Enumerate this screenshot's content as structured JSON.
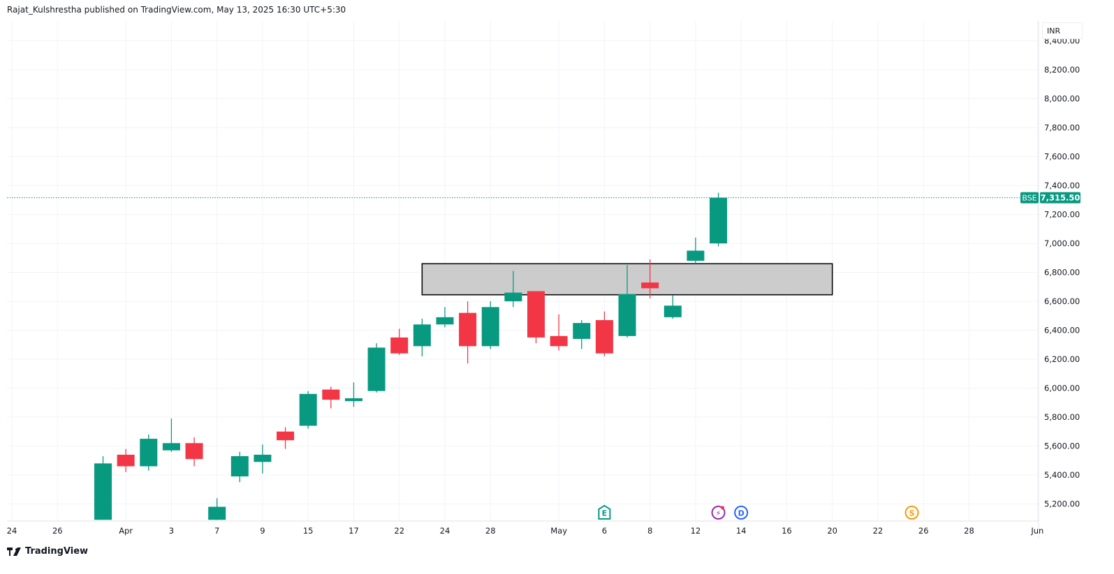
{
  "header": {
    "text": "Rajat_Kulshrestha published on TradingView.com, May 13, 2025 16:30 UTC+5:30"
  },
  "footer": {
    "brand": "TradingView",
    "logo_icon": "tradingview-logo-icon"
  },
  "price_scale": {
    "currency": "INR"
  },
  "last_price": {
    "exchange": "BSE",
    "value": "7,315.50"
  },
  "colors": {
    "up": "#089981",
    "down": "#f23645",
    "zone_fill": "#cccccc",
    "grid": "#f0f3fa"
  },
  "chart_data": {
    "type": "candlestick",
    "y_ticks": [
      "5,200.00",
      "5,400.00",
      "5,600.00",
      "5,800.00",
      "6,000.00",
      "6,200.00",
      "6,400.00",
      "6,600.00",
      "6,800.00",
      "7,000.00",
      "7,200.00",
      "7,400.00",
      "7,600.00",
      "7,800.00",
      "8,000.00",
      "8,200.00",
      "8,400.00"
    ],
    "ylim": [
      5050,
      8450
    ],
    "x_ticks": [
      {
        "label": "24",
        "date": "2025-03-24"
      },
      {
        "label": "26",
        "date": "2025-03-26"
      },
      {
        "label": "Apr",
        "date": "2025-04-01"
      },
      {
        "label": "3",
        "date": "2025-04-03"
      },
      {
        "label": "7",
        "date": "2025-04-07"
      },
      {
        "label": "9",
        "date": "2025-04-09"
      },
      {
        "label": "15",
        "date": "2025-04-15"
      },
      {
        "label": "17",
        "date": "2025-04-17"
      },
      {
        "label": "22",
        "date": "2025-04-22"
      },
      {
        "label": "24",
        "date": "2025-04-24"
      },
      {
        "label": "28",
        "date": "2025-04-28"
      },
      {
        "label": "May",
        "date": "2025-05-02"
      },
      {
        "label": "6",
        "date": "2025-05-06"
      },
      {
        "label": "8",
        "date": "2025-05-08"
      },
      {
        "label": "12",
        "date": "2025-05-12"
      },
      {
        "label": "14",
        "date": "2025-05-14"
      },
      {
        "label": "16",
        "date": "2025-05-16"
      },
      {
        "label": "20",
        "date": "2025-05-20"
      },
      {
        "label": "22",
        "date": "2025-05-22"
      },
      {
        "label": "26",
        "date": "2025-05-26"
      },
      {
        "label": "28",
        "date": "2025-05-28"
      },
      {
        "label": "Jun",
        "date": "2025-06-02"
      }
    ],
    "candles": [
      {
        "date": "2025-03-28",
        "o": 5090,
        "h": 5530,
        "l": 5090,
        "c": 5480
      },
      {
        "date": "2025-04-01",
        "o": 5540,
        "h": 5580,
        "l": 5420,
        "c": 5460
      },
      {
        "date": "2025-04-02",
        "o": 5460,
        "h": 5680,
        "l": 5430,
        "c": 5650
      },
      {
        "date": "2025-04-03",
        "o": 5570,
        "h": 5790,
        "l": 5560,
        "c": 5620
      },
      {
        "date": "2025-04-04",
        "o": 5620,
        "h": 5660,
        "l": 5460,
        "c": 5510
      },
      {
        "date": "2025-04-07",
        "o": 5090,
        "h": 5240,
        "l": 5090,
        "c": 5180
      },
      {
        "date": "2025-04-08",
        "o": 5390,
        "h": 5560,
        "l": 5350,
        "c": 5530
      },
      {
        "date": "2025-04-09",
        "o": 5490,
        "h": 5610,
        "l": 5410,
        "c": 5540
      },
      {
        "date": "2025-04-11",
        "o": 5700,
        "h": 5730,
        "l": 5580,
        "c": 5640
      },
      {
        "date": "2025-04-15",
        "o": 5740,
        "h": 5980,
        "l": 5720,
        "c": 5960
      },
      {
        "date": "2025-04-16",
        "o": 5990,
        "h": 6010,
        "l": 5860,
        "c": 5920
      },
      {
        "date": "2025-04-17",
        "o": 5910,
        "h": 6040,
        "l": 5870,
        "c": 5930
      },
      {
        "date": "2025-04-21",
        "o": 5980,
        "h": 6310,
        "l": 5970,
        "c": 6280
      },
      {
        "date": "2025-04-22",
        "o": 6350,
        "h": 6410,
        "l": 6230,
        "c": 6240
      },
      {
        "date": "2025-04-23",
        "o": 6290,
        "h": 6480,
        "l": 6220,
        "c": 6440
      },
      {
        "date": "2025-04-24",
        "o": 6440,
        "h": 6560,
        "l": 6420,
        "c": 6490
      },
      {
        "date": "2025-04-25",
        "o": 6520,
        "h": 6600,
        "l": 6170,
        "c": 6290
      },
      {
        "date": "2025-04-28",
        "o": 6290,
        "h": 6600,
        "l": 6270,
        "c": 6560
      },
      {
        "date": "2025-04-29",
        "o": 6600,
        "h": 6810,
        "l": 6560,
        "c": 6660
      },
      {
        "date": "2025-04-30",
        "o": 6670,
        "h": 6670,
        "l": 6310,
        "c": 6350
      },
      {
        "date": "2025-05-02",
        "o": 6360,
        "h": 6510,
        "l": 6260,
        "c": 6290
      },
      {
        "date": "2025-05-05",
        "o": 6340,
        "h": 6470,
        "l": 6270,
        "c": 6450
      },
      {
        "date": "2025-05-06",
        "o": 6470,
        "h": 6530,
        "l": 6220,
        "c": 6240
      },
      {
        "date": "2025-05-07",
        "o": 6360,
        "h": 6850,
        "l": 6350,
        "c": 6650
      },
      {
        "date": "2025-05-08",
        "o": 6730,
        "h": 6890,
        "l": 6620,
        "c": 6690
      },
      {
        "date": "2025-05-09",
        "o": 6490,
        "h": 6640,
        "l": 6480,
        "c": 6570
      },
      {
        "date": "2025-05-12",
        "o": 6880,
        "h": 7040,
        "l": 6860,
        "c": 6950
      },
      {
        "date": "2025-05-13",
        "o": 7000,
        "h": 7350,
        "l": 6980,
        "c": 7315.5
      }
    ],
    "zone": {
      "from": "2025-04-23",
      "to": "2025-05-20",
      "low": 6645,
      "high": 6860
    },
    "last_price": 7315.5,
    "events": [
      {
        "type": "earnings",
        "label": "E",
        "date": "2025-05-06",
        "color": "#089981",
        "icon": "earnings-icon"
      },
      {
        "type": "news",
        "label": "⚡",
        "date": "2025-05-13",
        "color": "#9c27b0",
        "icon": "lightning-icon"
      },
      {
        "type": "dividend",
        "label": "D",
        "date": "2025-05-14",
        "color": "#2962ff",
        "icon": "dividend-icon"
      },
      {
        "type": "split",
        "label": "S",
        "date": "2025-05-23",
        "color": "#ff9800",
        "icon": "split-icon"
      }
    ],
    "grid": true
  }
}
